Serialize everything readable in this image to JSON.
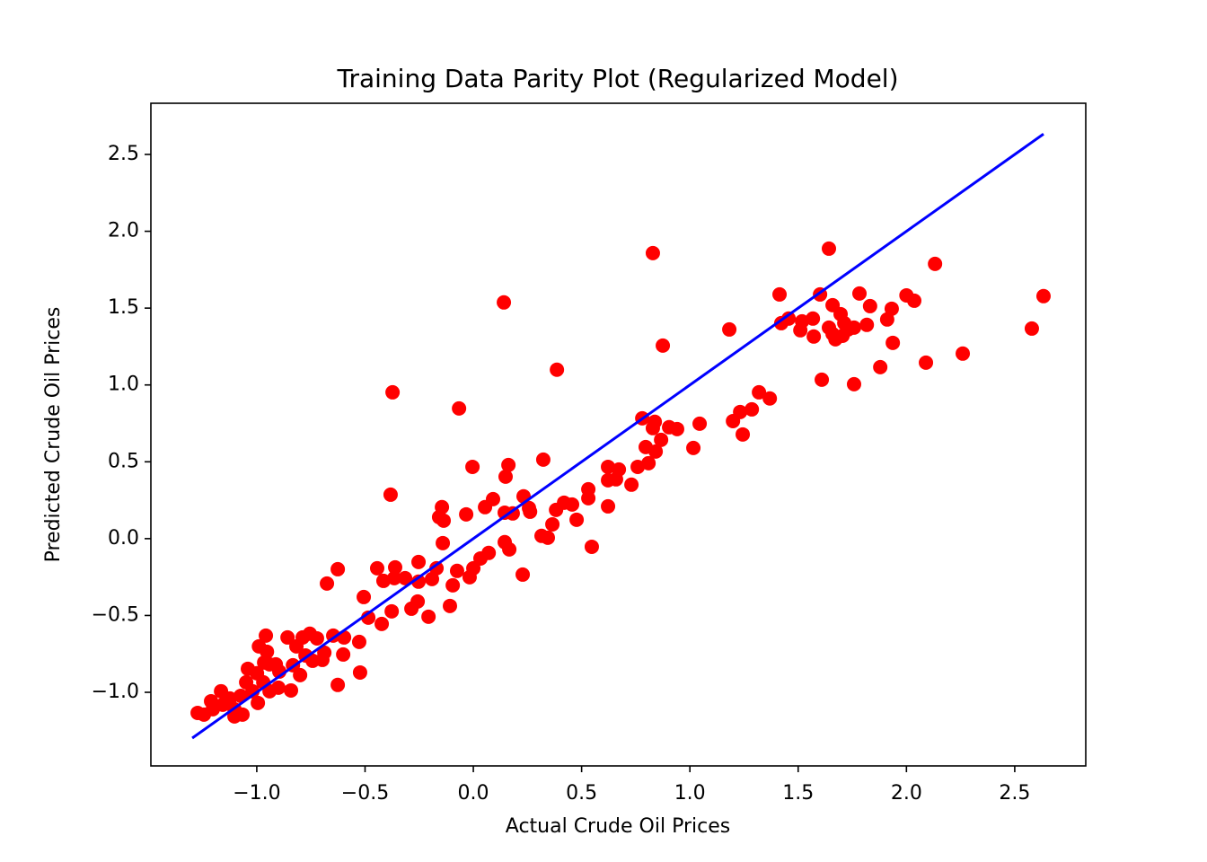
{
  "chart_data": {
    "type": "scatter",
    "title": "Training Data Parity Plot (Regularized Model)",
    "xlabel": "Actual Crude Oil Prices",
    "ylabel": "Predicted Crude Oil Prices",
    "xlim": [
      -1.489,
      2.828
    ],
    "ylim": [
      -1.479,
      2.833
    ],
    "xticks": [
      {
        "value": -1.0,
        "label": "−1.0"
      },
      {
        "value": -0.5,
        "label": "−0.5"
      },
      {
        "value": 0,
        "label": "0.0"
      },
      0.5,
      {
        "value": 1,
        "label": "1.0"
      },
      1.5,
      {
        "value": 2,
        "label": "2.0"
      },
      2.5
    ],
    "yticks": [
      {
        "value": -1.0,
        "label": "−1.0"
      },
      {
        "value": -0.5,
        "label": "−0.5"
      },
      {
        "value": 0,
        "label": "0.0"
      },
      0.5,
      {
        "value": 1,
        "label": "1.0"
      },
      1.5,
      {
        "value": 2,
        "label": "2.0"
      },
      2.5
    ],
    "points": {
      "color": "#ff0000",
      "x": [
        0.829,
        1.642,
        0.141,
        0.386,
        -0.373,
        -0.066,
        0.875,
        2.132,
        2.633,
        2.579,
        2.26,
        2.09,
        1.879,
        1.758,
        1.609,
        1.182,
        1.414,
        1.601,
        1.783,
        2.0,
        2.036,
        1.932,
        1.832,
        1.911,
        1.937,
        1.659,
        1.696,
        1.568,
        1.518,
        1.456,
        1.422,
        1.51,
        1.572,
        1.659,
        1.73,
        1.817,
        1.713,
        1.672,
        1.705,
        1.642,
        1.758,
        1.319,
        1.369,
        1.286,
        1.232,
        1.199,
        1.244,
        1.045,
        1.016,
        0.941,
        0.904,
        0.78,
        0.838,
        0.829,
        0.867,
        0.796,
        0.842,
        0.809,
        0.759,
        0.73,
        0.622,
        0.672,
        0.622,
        0.659,
        0.622,
        0.531,
        0.531,
        0.547,
        0.477,
        0.456,
        0.419,
        0.382,
        0.365,
        0.344,
        0.315,
        0.323,
        0.232,
        0.257,
        0.262,
        0.228,
        0.166,
        0.145,
        0.162,
        0.149,
        0.182,
        0.145,
        0.091,
        0.054,
        -0.004,
        -0.033,
        -0.145,
        -0.137,
        -0.158,
        -0.141,
        0.071,
        0.033,
        0.0,
        -0.017,
        -0.075,
        -0.095,
        -0.108,
        -0.207,
        -0.17,
        -0.191,
        -0.253,
        -0.253,
        -0.286,
        -0.257,
        -0.315,
        -0.361,
        -0.365,
        -0.382,
        -0.444,
        -0.415,
        -0.506,
        -0.626,
        -0.676,
        -0.485,
        -0.527,
        -0.523,
        -0.626,
        -0.423,
        -0.377,
        -0.597,
        -0.647,
        -0.601,
        -0.722,
        -0.755,
        -0.788,
        -0.858,
        -0.817,
        -0.775,
        -0.8,
        -0.842,
        -0.896,
        -0.941,
        -0.958,
        -0.99,
        -0.966,
        -0.999,
        -1.041,
        -1.049,
        -1.074,
        -1.103,
        -1.103,
        -1.066,
        -1.124,
        -1.157,
        -1.165,
        -1.203,
        -1.244,
        -1.273,
        -1.211,
        -0.941,
        -0.97,
        -0.9,
        -0.995,
        -1.02,
        -0.953,
        -0.912,
        -0.833,
        -0.742,
        -0.688,
        -0.697
      ],
      "y": [
        1.858,
        1.887,
        1.537,
        1.099,
        0.952,
        0.847,
        1.256,
        1.788,
        1.578,
        1.367,
        1.204,
        1.145,
        1.116,
        1.005,
        1.034,
        1.361,
        1.589,
        1.589,
        1.595,
        1.583,
        1.548,
        1.496,
        1.513,
        1.426,
        1.274,
        1.519,
        1.461,
        1.432,
        1.414,
        1.432,
        1.402,
        1.356,
        1.315,
        1.332,
        1.361,
        1.391,
        1.402,
        1.297,
        1.32,
        1.373,
        1.373,
        0.952,
        0.912,
        0.841,
        0.824,
        0.765,
        0.678,
        0.748,
        0.59,
        0.713,
        0.725,
        0.783,
        0.76,
        0.719,
        0.643,
        0.596,
        0.567,
        0.491,
        0.467,
        0.351,
        0.467,
        0.45,
        0.38,
        0.386,
        0.21,
        0.321,
        0.263,
        -0.053,
        0.123,
        0.222,
        0.234,
        0.187,
        0.093,
        0.006,
        0.018,
        0.514,
        0.275,
        0.199,
        0.175,
        -0.234,
        -0.07,
        -0.023,
        0.479,
        0.403,
        0.164,
        0.169,
        0.257,
        0.205,
        0.467,
        0.158,
        0.205,
        0.117,
        0.14,
        -0.029,
        -0.093,
        -0.129,
        -0.193,
        -0.251,
        -0.21,
        -0.304,
        -0.438,
        -0.508,
        -0.193,
        -0.263,
        -0.152,
        -0.28,
        -0.456,
        -0.409,
        -0.257,
        -0.187,
        -0.257,
        0.286,
        -0.193,
        -0.275,
        -0.38,
        -0.199,
        -0.292,
        -0.514,
        -0.672,
        -0.871,
        -0.952,
        -0.555,
        -0.473,
        -0.643,
        -0.631,
        -0.754,
        -0.649,
        -0.619,
        -0.643,
        -0.643,
        -0.701,
        -0.76,
        -0.888,
        -0.988,
        -0.865,
        -0.818,
        -0.631,
        -0.701,
        -0.806,
        -0.876,
        -0.847,
        -0.935,
        -1.023,
        -1.11,
        -1.157,
        -1.145,
        -1.04,
        -1.081,
        -0.993,
        -1.11,
        -1.145,
        -1.134,
        -1.058,
        -0.993,
        -0.935,
        -0.97,
        -1.069,
        -0.993,
        -0.736,
        -0.818,
        -0.824,
        -0.795,
        -0.742,
        -0.789
      ]
    },
    "line": {
      "color": "#0000ff",
      "x": [
        -1.298,
        2.633
      ],
      "y": [
        -1.298,
        2.633
      ]
    }
  }
}
